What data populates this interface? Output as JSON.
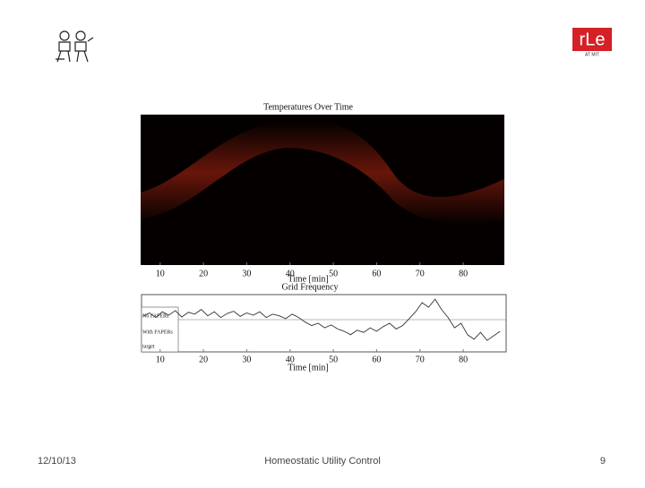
{
  "logo": {
    "text": "rLe",
    "subtext": "AT MIT"
  },
  "footer": {
    "date": "12/10/13",
    "title": "Homeostatic Utility Control",
    "page": "9"
  },
  "chart_data": [
    {
      "type": "heatmap",
      "title": "Temperatures Over Time",
      "x_label": "Time [min]",
      "xlim": [
        5.5,
        89.5
      ],
      "xticks": [
        10,
        20,
        30,
        40,
        50,
        60,
        70,
        80
      ]
    },
    {
      "type": "line",
      "title": "Grid Frequency",
      "x_label": "Time [min]",
      "row_labels": [
        "No FAPERs",
        "With FAPERs",
        "target"
      ],
      "xlim": [
        5.5,
        89.5
      ],
      "ylim": [
        0,
        1
      ],
      "xticks": [
        10,
        20,
        30,
        40,
        50,
        60,
        70,
        80
      ],
      "x": [
        6,
        7.5,
        9,
        10.5,
        12,
        13.5,
        15,
        16.5,
        18,
        19.5,
        21,
        22.5,
        24,
        25.5,
        27,
        28.5,
        30,
        31.5,
        33,
        34.5,
        36,
        37.5,
        39,
        40.5,
        42,
        43.5,
        45,
        46.5,
        48,
        49.5,
        51,
        52.5,
        54,
        55.5,
        57,
        58.5,
        60,
        61.5,
        63,
        64.5,
        66,
        67.5,
        69,
        70.5,
        72,
        73.5,
        75,
        76.5,
        78,
        79.5,
        81,
        82.5,
        84,
        85.5,
        87,
        88.5
      ],
      "values": [
        0.62,
        0.68,
        0.6,
        0.7,
        0.64,
        0.72,
        0.61,
        0.69,
        0.66,
        0.74,
        0.63,
        0.7,
        0.6,
        0.67,
        0.71,
        0.62,
        0.68,
        0.64,
        0.7,
        0.6,
        0.66,
        0.63,
        0.58,
        0.66,
        0.6,
        0.52,
        0.46,
        0.5,
        0.42,
        0.47,
        0.4,
        0.36,
        0.3,
        0.38,
        0.34,
        0.42,
        0.36,
        0.44,
        0.5,
        0.4,
        0.46,
        0.58,
        0.7,
        0.86,
        0.78,
        0.92,
        0.74,
        0.6,
        0.42,
        0.5,
        0.3,
        0.22,
        0.34,
        0.2,
        0.28,
        0.36
      ],
      "color": "#333333"
    }
  ]
}
